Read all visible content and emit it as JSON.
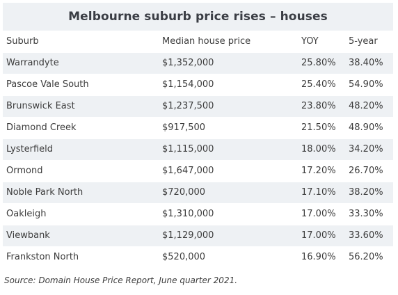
{
  "title": "Melbourne suburb price rises – houses",
  "table": {
    "headers": [
      "Suburb",
      "Median house price",
      "YOY",
      "5-year"
    ],
    "rows": [
      [
        "Warrandyte",
        "$1,352,000",
        "25.80%",
        "38.40%"
      ],
      [
        "Pascoe Vale South",
        "$1,154,000",
        "25.40%",
        "54.90%"
      ],
      [
        "Brunswick East",
        "$1,237,500",
        "23.80%",
        "48.20%"
      ],
      [
        "Diamond Creek",
        "$917,500",
        "21.50%",
        "48.90%"
      ],
      [
        "Lysterfield",
        "$1,115,000",
        "18.00%",
        "34.20%"
      ],
      [
        "Ormond",
        "$1,647,000",
        "17.20%",
        "26.70%"
      ],
      [
        "Noble Park North",
        "$720,000",
        "17.10%",
        "38.20%"
      ],
      [
        "Oakleigh",
        "$1,310,000",
        "17.00%",
        "33.30%"
      ],
      [
        "Viewbank",
        "$1,129,000",
        "17.00%",
        "33.60%"
      ],
      [
        "Frankston North",
        "$520,000",
        "16.90%",
        "56.20%"
      ]
    ]
  },
  "source": "Source: Domain House Price Report, June quarter 2021.",
  "colors": {
    "band": "#eef1f4",
    "text": "#3c3c3c",
    "title": "#3a3d44"
  }
}
